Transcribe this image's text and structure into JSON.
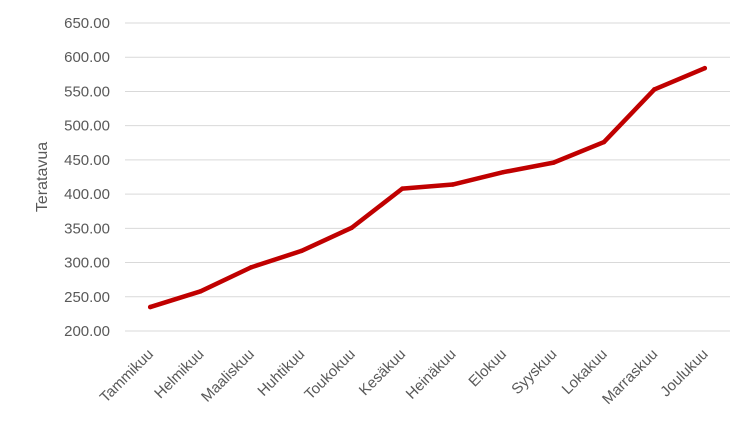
{
  "chart_data": {
    "type": "line",
    "title": "",
    "xlabel": "",
    "ylabel": "Teratavua",
    "categories": [
      "Tammikuu",
      "Helmikuu",
      "Maaliskuu",
      "Huhtikuu",
      "Toukokuu",
      "Kesäkuu",
      "Heinäkuu",
      "Elokuu",
      "Syyskuu",
      "Lokakuu",
      "Marraskuu",
      "Joulukuu"
    ],
    "series": [
      {
        "values": [
          235,
          258,
          293,
          317,
          351,
          408,
          414,
          432,
          446,
          476,
          553,
          584
        ]
      }
    ],
    "ylim": [
      200,
      650
    ],
    "yticks": [
      "200.00",
      "250.00",
      "300.00",
      "350.00",
      "400.00",
      "450.00",
      "500.00",
      "550.00",
      "600.00",
      "650.00"
    ],
    "grid": true,
    "legend": "none",
    "colors": {
      "line": "#C00000",
      "grid": "#D9D9D9",
      "text": "#595959"
    }
  }
}
